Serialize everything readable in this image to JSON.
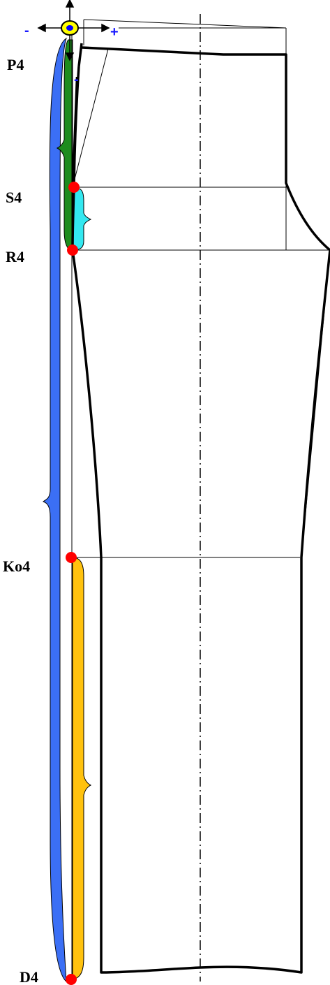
{
  "labels": {
    "p4": "P4",
    "s4": "S4",
    "r4": "R4",
    "ko4": "Ko4",
    "d4": "D4"
  },
  "signs": {
    "minus_left": "-",
    "plus_right": "+",
    "minus_down": "-"
  },
  "colors": {
    "outline": "#000000",
    "point": "#ff0000",
    "origin_fill": "#ffff00",
    "origin_center": "#0000ff",
    "sign": "#1a1aff",
    "brace_blue": "#3b6ff5",
    "brace_green": "#1e8c1e",
    "brace_cyan": "#33e8f0",
    "brace_yellow": "#ffc20e"
  }
}
